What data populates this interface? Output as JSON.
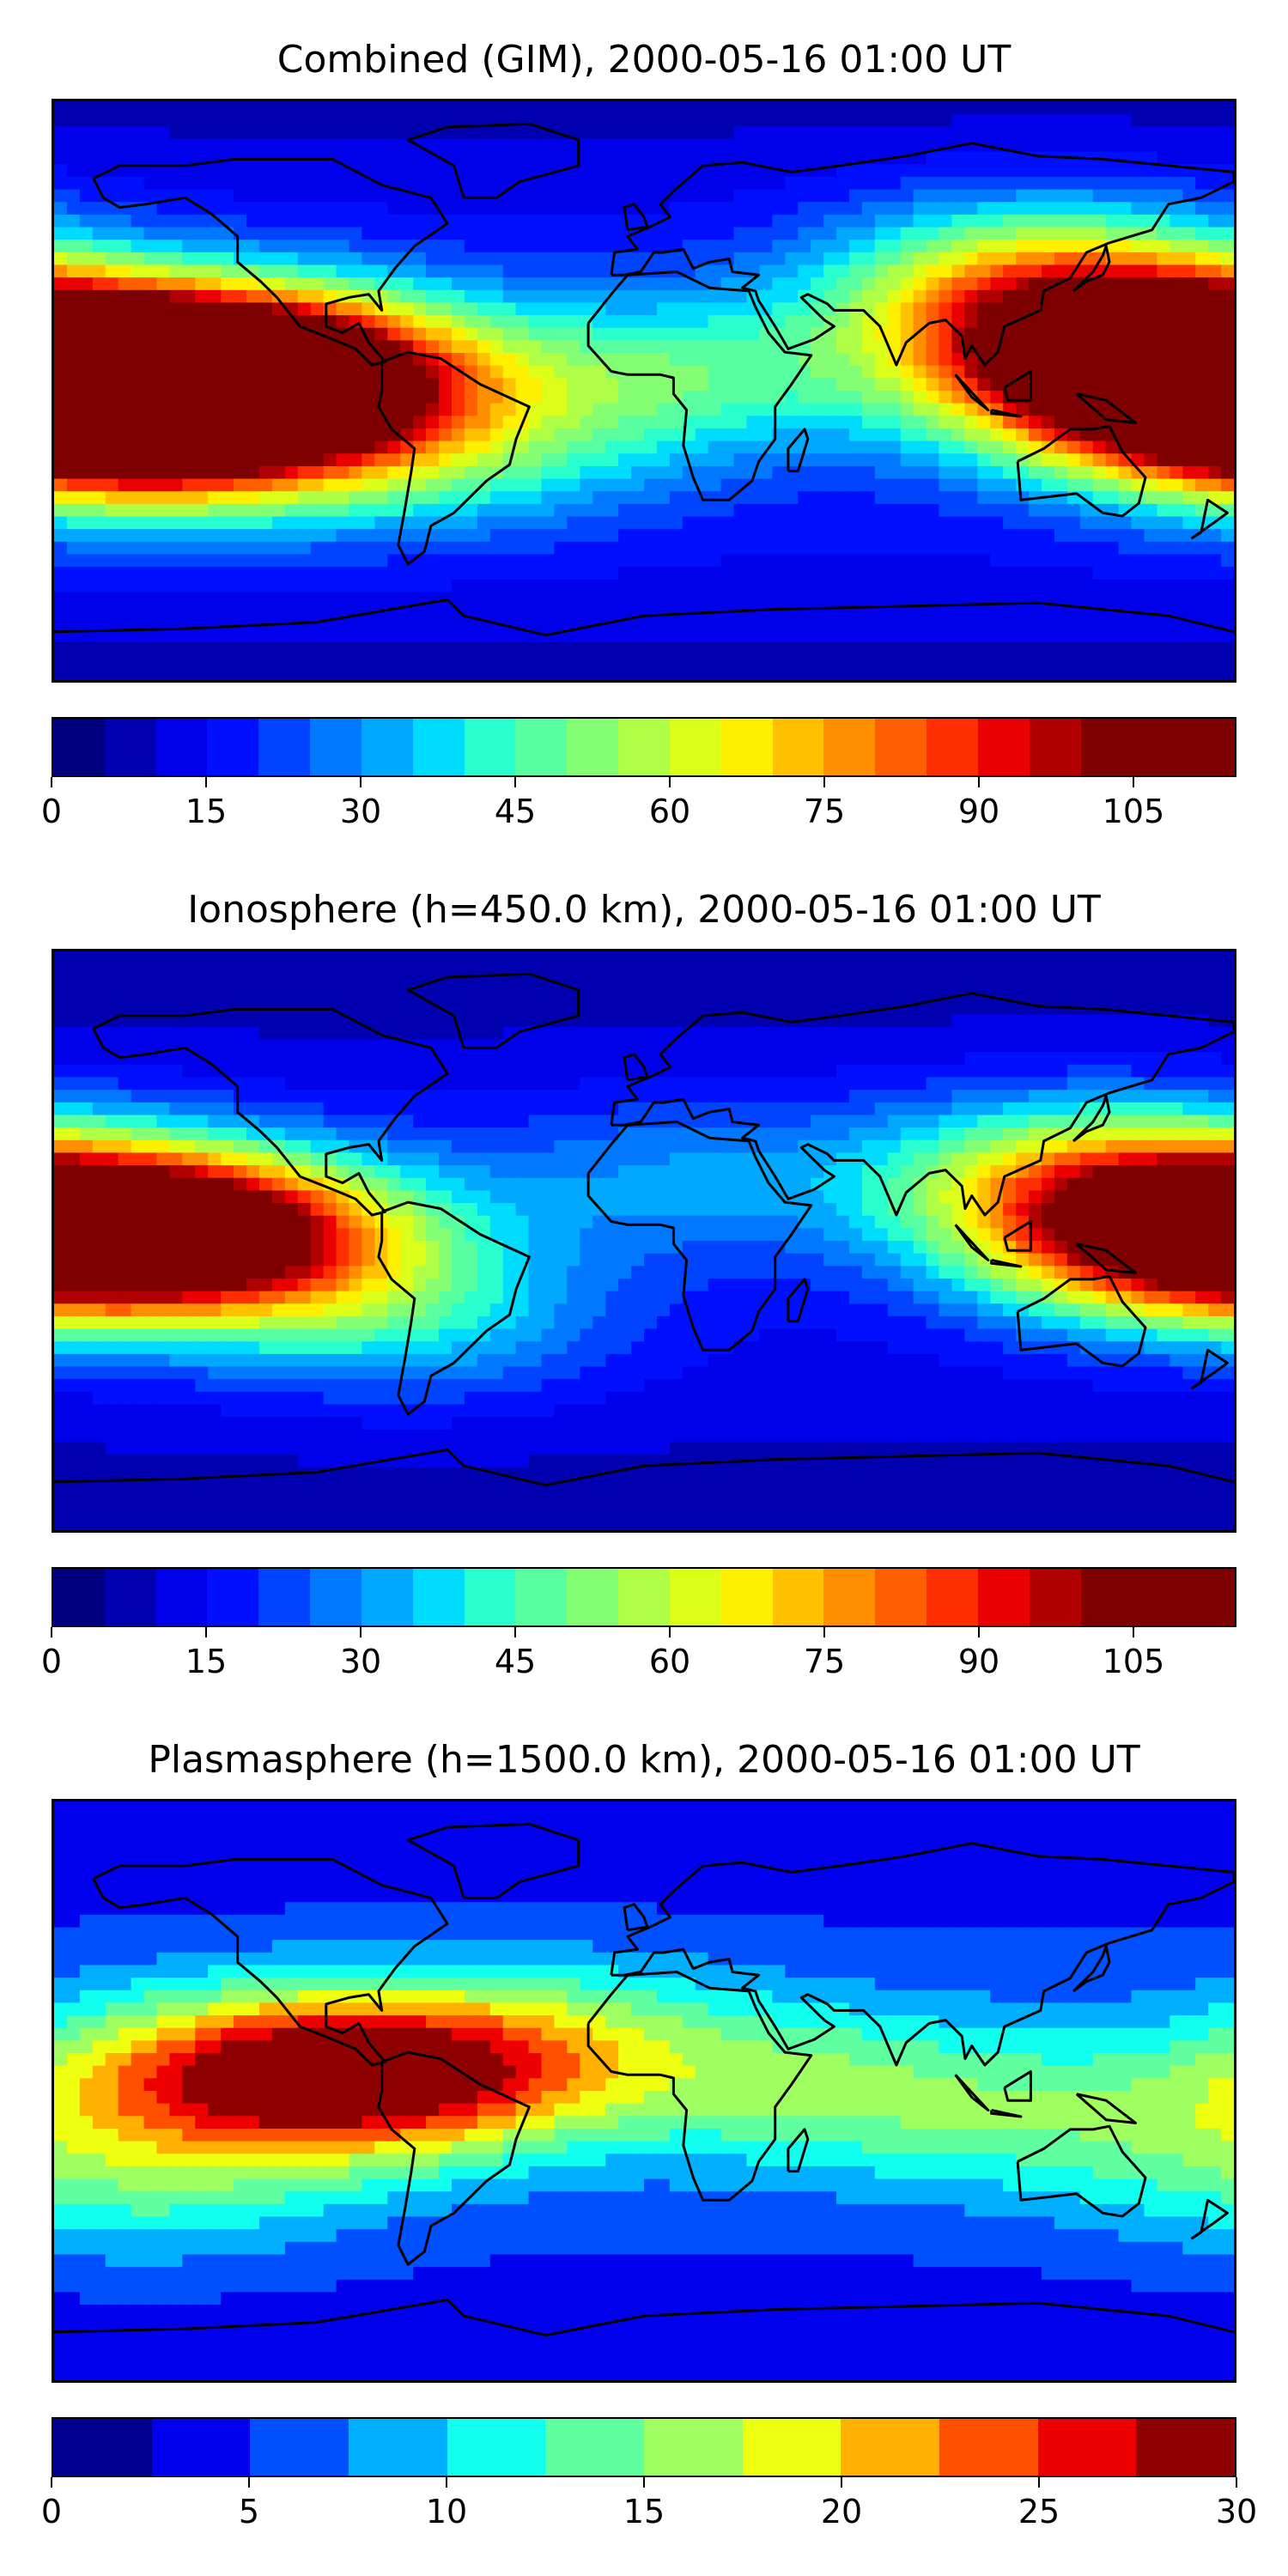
{
  "panels": [
    {
      "title": "Combined (GIM), 2000-05-16 01:00 UT",
      "colorbar": {
        "range": [
          0,
          115
        ],
        "levels": 23,
        "tick_labels": [
          "0",
          "15",
          "30",
          "45",
          "60",
          "75",
          "90",
          "105"
        ],
        "tick_values": [
          0,
          15,
          30,
          45,
          60,
          75,
          90,
          105
        ]
      },
      "blobs": [
        {
          "lon": -150,
          "lat": 5,
          "value": 100
        },
        {
          "lon": -110,
          "lat": 5,
          "value": 95
        },
        {
          "lon": -150,
          "lat": -15,
          "value": 70
        },
        {
          "lon": 165,
          "lat": 0,
          "value": 90
        },
        {
          "lon": 140,
          "lat": 15,
          "value": 75
        },
        {
          "lon": 120,
          "lat": 35,
          "value": 60
        },
        {
          "lon": 10,
          "lat": 5,
          "value": 45
        },
        {
          "lon": -60,
          "lat": -20,
          "value": 40
        }
      ],
      "base_value": 18
    },
    {
      "title": "Ionosphere  (h=450.0 km), 2000-05-16 01:00 UT",
      "colorbar": {
        "range": [
          0,
          115
        ],
        "levels": 23,
        "tick_labels": [
          "0",
          "15",
          "30",
          "45",
          "60",
          "75",
          "90",
          "105"
        ],
        "tick_values": [
          0,
          15,
          30,
          45,
          60,
          75,
          90,
          105
        ]
      },
      "blobs": [
        {
          "lon": -160,
          "lat": 5,
          "value": 80
        },
        {
          "lon": -120,
          "lat": 0,
          "value": 65
        },
        {
          "lon": 165,
          "lat": 0,
          "value": 80
        },
        {
          "lon": 130,
          "lat": 20,
          "value": 55
        },
        {
          "lon": 10,
          "lat": 20,
          "value": 30
        },
        {
          "lon": -70,
          "lat": -25,
          "value": 35
        }
      ],
      "base_value": 14
    },
    {
      "title": "Plasmasphere (h=1500.0 km), 2000-05-16 01:00 UT",
      "colorbar": {
        "range": [
          0,
          30
        ],
        "levels": 12,
        "tick_labels": [
          "0",
          "5",
          "10",
          "15",
          "20",
          "25",
          "30"
        ],
        "tick_values": [
          0,
          5,
          10,
          15,
          20,
          25,
          30
        ]
      },
      "blobs": [
        {
          "lon": -80,
          "lat": 5,
          "value": 26
        },
        {
          "lon": -130,
          "lat": 5,
          "value": 18
        },
        {
          "lon": -20,
          "lat": 15,
          "value": 13
        },
        {
          "lon": 60,
          "lat": 0,
          "value": 14
        },
        {
          "lon": 140,
          "lat": -10,
          "value": 12
        },
        {
          "lon": -150,
          "lat": -30,
          "value": 12
        }
      ],
      "base_value": 6
    }
  ],
  "colors": {
    "jet_23": [
      "#00007f",
      "#0000b0",
      "#0000ea",
      "#0010ff",
      "#0044ff",
      "#0078ff",
      "#00a8ff",
      "#00dcfe",
      "#29ffce",
      "#58ffa0",
      "#84ff73",
      "#b0ff47",
      "#dcff1a",
      "#fff000",
      "#ffc100",
      "#ff8f00",
      "#ff5f00",
      "#ff2e00",
      "#ea0000",
      "#b00000",
      "#7f0000",
      "#7f0000",
      "#7f0000"
    ],
    "jet_12": [
      "#00008f",
      "#0000ef",
      "#0050ff",
      "#00b0ff",
      "#10ffef",
      "#60ffa0",
      "#a0ff60",
      "#efff10",
      "#ffb000",
      "#ff5000",
      "#ef0000",
      "#8f0000"
    ],
    "coastline": "#000000"
  }
}
